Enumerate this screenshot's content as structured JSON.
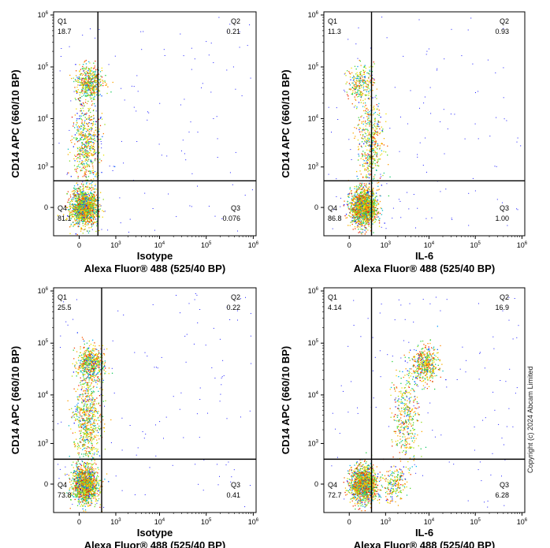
{
  "copyright": "Copyright (c) 2024 Abcam Limited",
  "chart_data": [
    {
      "type": "scatter",
      "xlabel_top": "Isotype",
      "xlabel": "Alexa Fluor® 488  (525/40 BP)",
      "ylabel": "CD14 APC (660/10 BP)",
      "x_ticks": [
        "0",
        "10^3",
        "10^4",
        "10^5",
        "10^6"
      ],
      "y_ticks": [
        "0",
        "10^3",
        "10^4",
        "10^5",
        "10^6"
      ],
      "gate": {
        "x": 300,
        "y": 450
      },
      "quadrants": [
        {
          "name": "Q1",
          "value": "18.7"
        },
        {
          "name": "Q2",
          "value": "0.21"
        },
        {
          "name": "Q3",
          "value": "0.076"
        },
        {
          "name": "Q4",
          "value": "81.1"
        }
      ],
      "populations": [
        {
          "x": 50,
          "y": 0,
          "weight": 0.55
        },
        {
          "x": 120,
          "y": 50000,
          "weight": 0.18
        },
        {
          "x": 80,
          "y": 3000,
          "weight": 0.22
        }
      ]
    },
    {
      "type": "scatter",
      "xlabel_top": "IL-6",
      "xlabel": "Alexa Fluor® 488  (525/40 BP)",
      "ylabel": "CD14 APC (660/10 BP)",
      "x_ticks": [
        "0",
        "10^3",
        "10^4",
        "10^5",
        "10^6"
      ],
      "y_ticks": [
        "0",
        "10^3",
        "10^4",
        "10^5",
        "10^6"
      ],
      "gate": {
        "x": 400,
        "y": 450
      },
      "quadrants": [
        {
          "name": "Q1",
          "value": "11.3"
        },
        {
          "name": "Q2",
          "value": "0.93"
        },
        {
          "name": "Q3",
          "value": "1.00"
        },
        {
          "name": "Q4",
          "value": "86.8"
        }
      ],
      "populations": [
        {
          "x": 200,
          "y": 0,
          "weight": 0.6
        },
        {
          "x": 150,
          "y": 50000,
          "weight": 0.1
        },
        {
          "x": 350,
          "y": 3000,
          "weight": 0.18
        }
      ]
    },
    {
      "type": "scatter",
      "xlabel_top": "Isotype",
      "xlabel": "Alexa Fluor® 488  (525/40 BP)",
      "ylabel": "CD14 APC (660/10 BP)",
      "x_ticks": [
        "0",
        "10^3",
        "10^4",
        "10^5",
        "10^6"
      ],
      "y_ticks": [
        "0",
        "10^3",
        "10^4",
        "10^5",
        "10^6"
      ],
      "gate": {
        "x": 400,
        "y": 400
      },
      "quadrants": [
        {
          "name": "Q1",
          "value": "25.5"
        },
        {
          "name": "Q2",
          "value": "0.22"
        },
        {
          "name": "Q3",
          "value": "0.41"
        },
        {
          "name": "Q4",
          "value": "73.8"
        }
      ],
      "populations": [
        {
          "x": 60,
          "y": 0,
          "weight": 0.5
        },
        {
          "x": 140,
          "y": 40000,
          "weight": 0.22
        },
        {
          "x": 90,
          "y": 3000,
          "weight": 0.25
        }
      ]
    },
    {
      "type": "scatter",
      "xlabel_top": "IL-6",
      "xlabel": "Alexa Fluor® 488  (525/40 BP)",
      "ylabel": "CD14 APC (660/10 BP)",
      "x_ticks": [
        "0",
        "10^3",
        "10^4",
        "10^5",
        "10^6"
      ],
      "y_ticks": [
        "0",
        "10^3",
        "10^4",
        "10^5",
        "10^6"
      ],
      "gate": {
        "x": 400,
        "y": 400
      },
      "quadrants": [
        {
          "name": "Q1",
          "value": "4.14"
        },
        {
          "name": "Q2",
          "value": "16.9"
        },
        {
          "name": "Q3",
          "value": "6.28"
        },
        {
          "name": "Q4",
          "value": "72.7"
        }
      ],
      "populations": [
        {
          "x": 200,
          "y": 0,
          "weight": 0.55
        },
        {
          "x": 8000,
          "y": 40000,
          "weight": 0.17
        },
        {
          "x": 3000,
          "y": 4000,
          "weight": 0.15
        },
        {
          "x": 1500,
          "y": 0,
          "weight": 0.08
        }
      ]
    }
  ]
}
